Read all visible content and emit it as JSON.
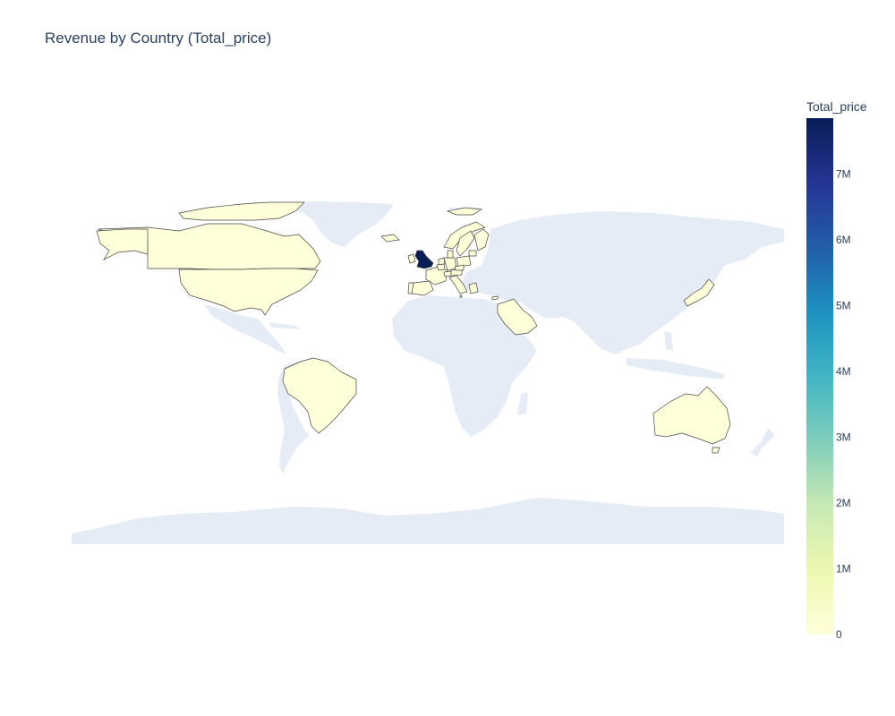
{
  "title": "Revenue by Country (Total_price)",
  "colorbar": {
    "title": "Total_price",
    "ticks": [
      "0",
      "1M",
      "2M",
      "3M",
      "4M",
      "5M",
      "6M",
      "7M"
    ],
    "tick_values": [
      0,
      1000000,
      2000000,
      3000000,
      4000000,
      5000000,
      6000000,
      7000000
    ],
    "range": [
      0,
      7850000
    ],
    "colorscale": [
      "#ffffd9",
      "#edf8b1",
      "#c7e9b4",
      "#7fcdbb",
      "#41b6c4",
      "#1d91c0",
      "#225ea8",
      "#253494",
      "#081d58"
    ]
  },
  "colors": {
    "land": "#e5ecf6",
    "background": "#ffffff",
    "border": "#444444"
  },
  "chart_data": {
    "type": "choropleth",
    "title": "Revenue by Country (Total_price)",
    "color_variable": "Total_price",
    "countries": [
      {
        "name": "United Kingdom",
        "value": 7850000
      },
      {
        "name": "Canada",
        "value": 0
      },
      {
        "name": "United States",
        "value": 0
      },
      {
        "name": "Brazil",
        "value": 0
      },
      {
        "name": "Australia",
        "value": 0
      },
      {
        "name": "Japan",
        "value": 0
      },
      {
        "name": "Saudi Arabia",
        "value": 0
      },
      {
        "name": "Ireland",
        "value": 0
      },
      {
        "name": "France",
        "value": 0
      },
      {
        "name": "Spain",
        "value": 0
      },
      {
        "name": "Portugal",
        "value": 0
      },
      {
        "name": "Germany",
        "value": 0
      },
      {
        "name": "Netherlands",
        "value": 0
      },
      {
        "name": "Belgium",
        "value": 0
      },
      {
        "name": "Switzerland",
        "value": 0
      },
      {
        "name": "Austria",
        "value": 0
      },
      {
        "name": "Italy",
        "value": 0
      },
      {
        "name": "Norway",
        "value": 0
      },
      {
        "name": "Sweden",
        "value": 0
      },
      {
        "name": "Finland",
        "value": 0
      },
      {
        "name": "Denmark",
        "value": 0
      },
      {
        "name": "Poland",
        "value": 0
      },
      {
        "name": "Czech Republic",
        "value": 0
      },
      {
        "name": "Lithuania",
        "value": 0
      },
      {
        "name": "Greece",
        "value": 0
      },
      {
        "name": "Cyprus",
        "value": 0
      },
      {
        "name": "Iceland",
        "value": 0
      },
      {
        "name": "Malta",
        "value": 0
      }
    ]
  }
}
